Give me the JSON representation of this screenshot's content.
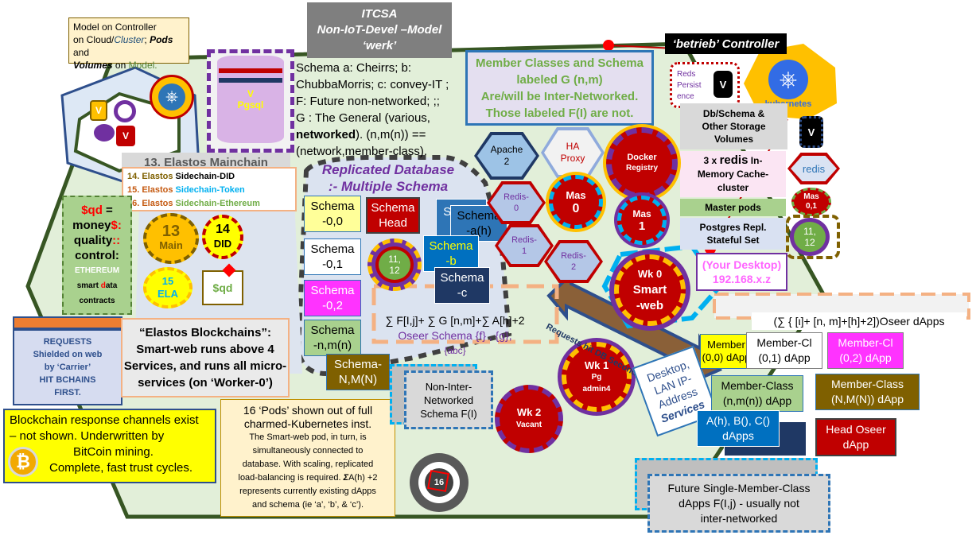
{
  "colors": {
    "hex_bg": "#e3f0d8",
    "hex_border": "#375623",
    "pod_red": "#c00000",
    "green": "#70ad47",
    "yellow": "#ffff00",
    "magenta": "#ff00ff"
  },
  "callout_model": {
    "l1": "Model on Controller",
    "l2a": "on Cloud/",
    "l2b": "Cluster",
    "l2c": ";",
    "l2d": "Pods",
    "l2e": "and",
    "l3a": "Volumes",
    "l3b": "on",
    "l3c": "Model."
  },
  "title_box": {
    "l1": "ITCSA",
    "l2": "Non-IoT-Devel –Model",
    "l3": "‘werk’"
  },
  "schema_text": {
    "l1": "Schema a: Cheirrs; b:",
    "l2": "ChubbaMorris; c: convey-IT ;",
    "l3": "F: Future non-networked; ;;",
    "l4": "G : The General (various,",
    "l5a": "networked",
    "l5b": "). (n,m(n)) ==",
    "l6": "(network,member-class)."
  },
  "member_classes": {
    "l1": "Member Classes and Schema",
    "l2": "labeled G (n,m)",
    "l3": "Are/will be  Inter-Networked.",
    "l4": "Those labeled F(I) are not."
  },
  "controller": {
    "label": "‘betrieb’ Controller",
    "k8s": "kubernetes"
  },
  "redis_persist": {
    "l1": "Reds",
    "l2": "Persist",
    "l3": "ence",
    "v": "V"
  },
  "db_schema_box": {
    "l1": "Db/Schema &",
    "l2": "Other Storage",
    "l3": "Volumes"
  },
  "redis_cache": {
    "a": "3 x",
    "b": "redis",
    "c": "In-",
    "l2": "Memory Cache-",
    "l3": "cluster"
  },
  "master_pods": "Master pods",
  "postgres_repl": {
    "l1": "Postgres Repl.",
    "l2": "Stateful Set"
  },
  "your_desktop": {
    "l1": "(Your Desktop)",
    "l2": "192.168.x.z"
  },
  "elastos_main": "13. Elastos Mainchain",
  "sidechains": {
    "s14a": "14. Elastos",
    "s14b": "Sidechain-DID",
    "s15a": "15. Elastos",
    "s15b": "Sidechain-Token",
    "s16a": "16. Elastos",
    "s16b": "Sidechain-Ethereum"
  },
  "money_box": {
    "l1a": "$qd",
    "l1b": "=",
    "l2a": "money",
    "l2b": "$:",
    "l3a": "quality",
    "l3b": "::",
    "l4": "control:",
    "l5": "ETHEREUM",
    "l6a": "smart",
    "l6b": "d",
    "l6c": "ata",
    "l7": "contracts"
  },
  "chains": {
    "c13a": "13",
    "c13b": "Main",
    "c14a": "14",
    "c14b": "DID",
    "c15a": "15",
    "c15b": "ELA",
    "sqd": "$qd"
  },
  "requests_box": {
    "l1": "REQUESTS",
    "l2": "Shielded on web",
    "l3": "by ‘Carrier’",
    "l4": "HIT BCHAINS",
    "l5": "FIRST."
  },
  "elastos_bc": {
    "l1": "“Elastos Blockchains”:",
    "l2": "Smart-web runs above 4",
    "l3": "Services, and runs all micro-",
    "l4": "services (on ‘Worker-0’)"
  },
  "blockchain_box": {
    "l1": "Blockchain response channels exist",
    "l2": "– not shown. Underwritten by",
    "l3": "BitCoin mining.",
    "l4": "Complete, fast trust cycles."
  },
  "pods_note": {
    "l1": "16 ‘Pods’ shown out of full",
    "l2": "charmed-Kubernetes inst.",
    "p1": "The Smart-web pod, in turn, is",
    "p2": "simultaneously connected to",
    "p3": "database. With scaling, replicated",
    "p4": "load-balancing is required.",
    "p5a": "Σ",
    "p5b": "A(h) +2",
    "p6": "represents currently existing dApps",
    "p7": "and schema (ie  ‘a’, ‘b’, & ‘c’)."
  },
  "replicated_db": {
    "l1": "Replicated Database",
    "l2": ":- Multiple Schema"
  },
  "schemas": {
    "s00a": "Schema",
    "s00b": "-0,0",
    "s01a": "Schema",
    "s01b": "-0,1",
    "s02a": "Schema",
    "s02b": "-0,2",
    "snma": "Schema",
    "snmb": "-n,m(n)",
    "sNMa": "Schema-",
    "sNMb": "N,M(N)",
    "heada": "Schema",
    "headb": "Head",
    "aha": "Schema",
    "ahb": "-a(h)",
    "sba": "Schema",
    "sbb": "-b",
    "sca": "Schema",
    "scb": "-c",
    "sc_stub": "Sc"
  },
  "non_inter": {
    "l1": "Non-Inter-",
    "l2": "Networked",
    "l3": "Schema F(I)"
  },
  "oseer_sum": {
    "l1": "∑ F[I,j]+ ∑ G [n,m]+∑  A[h]+2",
    "l2": "Oseer Schema {f} , {g},",
    "l3": "{abc}"
  },
  "services": {
    "apache_a": "Apache",
    "apache_b": "2",
    "ha_a": "HA",
    "ha_b": "Proxy",
    "docker_a": "Docker",
    "docker_b": "Registry",
    "redis0a": "Redis-",
    "redis0b": "0",
    "redis1a": "Redis-",
    "redis1b": "1",
    "redis2a": "Redis-",
    "redis2b": "2",
    "mas0a": "Mas",
    "mas0b": "0",
    "mas1a": "Mas",
    "mas1b": "1",
    "mas01a": "Mas",
    "mas01b": "0,1",
    "redis_r": "redis",
    "v_right": "V",
    "v_left": "V",
    "pgsql_v": "V",
    "pgsql": "Pgsql",
    "p1112": "11,",
    "p1112b": "12",
    "r1112": "11,",
    "r1112b": "12"
  },
  "workers": {
    "wk0a": "Wk 0",
    "wk0b": "Smart",
    "wk0c": "-web",
    "wk1a": "Wk 1",
    "wk1b": "Pg",
    "wk1c": "admin4",
    "wk2a": "Wk 2",
    "wk2b": "Vacant",
    "p16": "16"
  },
  "requests_arrow": "Requests hit DB Secondarily.",
  "desktop_lan": {
    "l1": "Desktop,",
    "l2": "LAN IP-",
    "l3": "Address",
    "l4": "Services"
  },
  "oseer_dapps": "(∑ { [ι]+ [n, m]+[h]+2])Oseer dApps",
  "dapps": {
    "m00a": "Member",
    "m00b": "(0,0)",
    "m00c": "dApp",
    "m01a": "Member-Cl",
    "m01b": "(0,1) dApp",
    "m02a": "Member-Cl",
    "m02b": "(0,2) dApp",
    "mnma": "Member-Class",
    "mnmb": "(n,m(n)) dApp",
    "mNMa": "Member-Class",
    "mNMb": "(N,M(N)) dApp",
    "aha": "A(h), B(), C()",
    "ahb": "dApps",
    "heada": "Head Oseer",
    "headb": "dApp"
  },
  "future": {
    "l1": "Future Single-Member-Class",
    "l2": "dApps F(I,j) - usually not",
    "l3": "inter-networked"
  }
}
